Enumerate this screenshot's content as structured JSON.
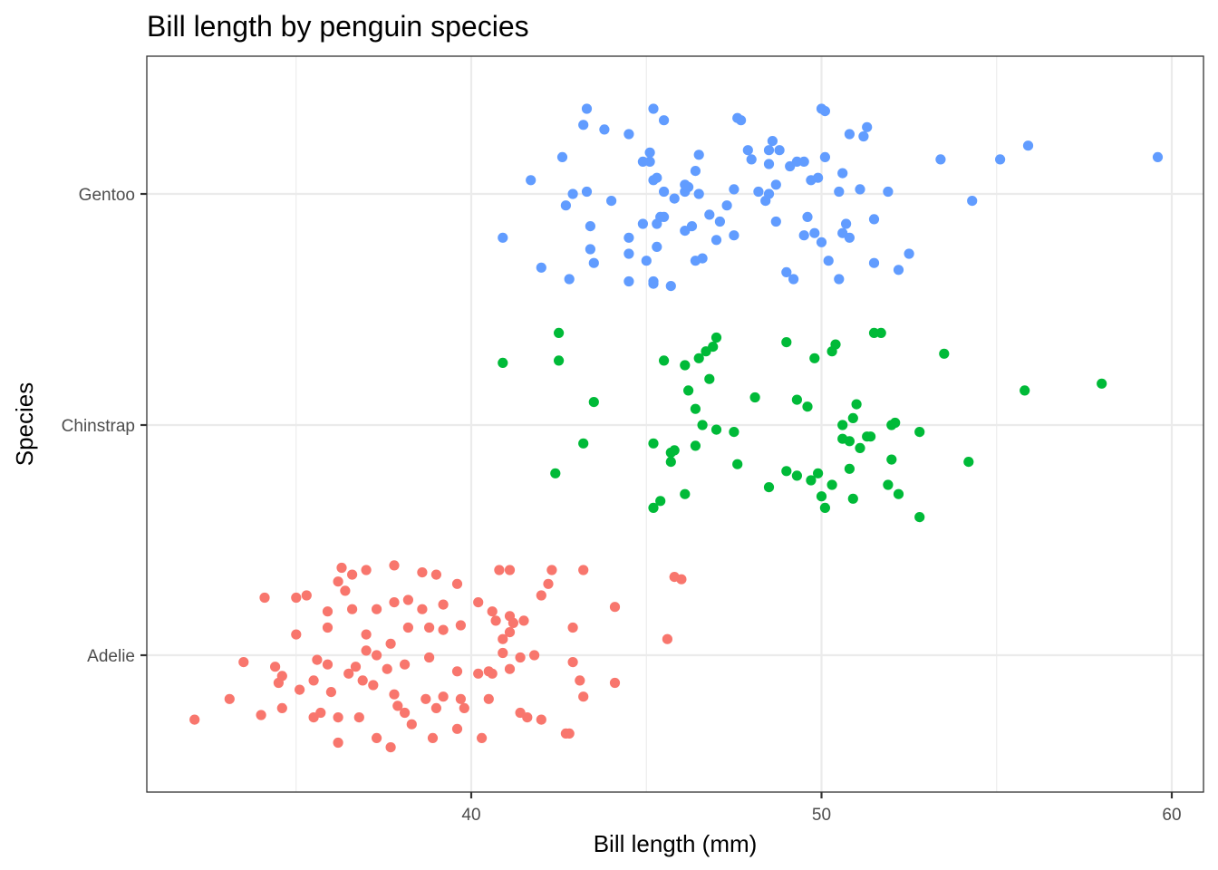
{
  "chart_data": {
    "type": "scatter",
    "title": "Bill length by penguin species",
    "xlabel": "Bill length (mm)",
    "ylabel": "Species",
    "xlim": [
      31.5,
      60.5
    ],
    "x_ticks": [
      40,
      50,
      60
    ],
    "categories": [
      "Adelie",
      "Chinstrap",
      "Gentoo"
    ],
    "grid": true,
    "legend": "none",
    "series": [
      {
        "category": "Adelie",
        "color": "#F8766D",
        "points": [
          [
            32.1,
            -0.28
          ],
          [
            33.1,
            -0.19
          ],
          [
            33.5,
            -0.03
          ],
          [
            34.0,
            -0.26
          ],
          [
            34.1,
            0.25
          ],
          [
            34.4,
            -0.05
          ],
          [
            34.5,
            -0.12
          ],
          [
            34.6,
            -0.09
          ],
          [
            34.6,
            -0.23
          ],
          [
            35.0,
            0.25
          ],
          [
            35.0,
            0.09
          ],
          [
            35.1,
            -0.15
          ],
          [
            35.3,
            0.26
          ],
          [
            35.5,
            -0.11
          ],
          [
            35.5,
            -0.27
          ],
          [
            35.6,
            -0.02
          ],
          [
            35.7,
            -0.25
          ],
          [
            35.9,
            0.19
          ],
          [
            35.9,
            -0.04
          ],
          [
            35.9,
            0.12
          ],
          [
            36.0,
            -0.16
          ],
          [
            36.2,
            0.32
          ],
          [
            36.2,
            -0.27
          ],
          [
            36.2,
            -0.38
          ],
          [
            36.3,
            0.38
          ],
          [
            36.4,
            0.28
          ],
          [
            36.5,
            -0.08
          ],
          [
            36.6,
            0.35
          ],
          [
            36.6,
            0.2
          ],
          [
            36.7,
            -0.05
          ],
          [
            36.8,
            -0.27
          ],
          [
            36.9,
            -0.11
          ],
          [
            37.0,
            0.09
          ],
          [
            37.0,
            0.02
          ],
          [
            37.0,
            0.37
          ],
          [
            37.2,
            -0.13
          ],
          [
            37.3,
            0.2
          ],
          [
            37.3,
            0.0
          ],
          [
            37.3,
            -0.36
          ],
          [
            37.6,
            -0.06
          ],
          [
            37.7,
            0.05
          ],
          [
            37.7,
            -0.4
          ],
          [
            37.8,
            -0.17
          ],
          [
            37.8,
            0.23
          ],
          [
            37.8,
            0.39
          ],
          [
            37.9,
            -0.22
          ],
          [
            38.1,
            -0.25
          ],
          [
            38.1,
            -0.04
          ],
          [
            38.2,
            0.12
          ],
          [
            38.2,
            0.24
          ],
          [
            38.3,
            -0.3
          ],
          [
            38.6,
            0.2
          ],
          [
            38.6,
            0.36
          ],
          [
            38.7,
            -0.19
          ],
          [
            38.8,
            0.12
          ],
          [
            38.8,
            -0.01
          ],
          [
            38.9,
            -0.36
          ],
          [
            39.0,
            0.35
          ],
          [
            39.0,
            -0.23
          ],
          [
            39.2,
            0.22
          ],
          [
            39.2,
            0.11
          ],
          [
            39.2,
            -0.18
          ],
          [
            39.6,
            -0.07
          ],
          [
            39.6,
            -0.32
          ],
          [
            39.6,
            0.31
          ],
          [
            39.7,
            0.13
          ],
          [
            39.7,
            -0.19
          ],
          [
            39.8,
            -0.23
          ],
          [
            40.2,
            0.23
          ],
          [
            40.2,
            -0.08
          ],
          [
            40.3,
            -0.36
          ],
          [
            40.5,
            -0.07
          ],
          [
            40.5,
            -0.19
          ],
          [
            40.6,
            -0.08
          ],
          [
            40.6,
            0.19
          ],
          [
            40.7,
            0.15
          ],
          [
            40.8,
            0.37
          ],
          [
            40.9,
            0.01
          ],
          [
            40.9,
            0.07
          ],
          [
            41.1,
            0.17
          ],
          [
            41.1,
            0.37
          ],
          [
            41.1,
            -0.06
          ],
          [
            41.1,
            0.1
          ],
          [
            41.2,
            0.14
          ],
          [
            41.4,
            -0.25
          ],
          [
            41.4,
            -0.01
          ],
          [
            41.5,
            0.15
          ],
          [
            41.6,
            -0.27
          ],
          [
            41.8,
            0.0
          ],
          [
            42.0,
            -0.28
          ],
          [
            42.0,
            0.26
          ],
          [
            42.2,
            0.31
          ],
          [
            42.3,
            0.37
          ],
          [
            42.7,
            -0.34
          ],
          [
            42.8,
            -0.34
          ],
          [
            42.9,
            -0.03
          ],
          [
            42.9,
            0.12
          ],
          [
            43.1,
            -0.11
          ],
          [
            43.2,
            -0.18
          ],
          [
            43.2,
            0.37
          ],
          [
            44.1,
            0.21
          ],
          [
            44.1,
            -0.12
          ],
          [
            45.6,
            0.07
          ],
          [
            45.8,
            0.34
          ],
          [
            46.0,
            0.33
          ]
        ]
      },
      {
        "category": "Chinstrap",
        "color": "#00BA38",
        "points": [
          [
            40.9,
            0.27
          ],
          [
            42.4,
            -0.21
          ],
          [
            42.5,
            0.4
          ],
          [
            42.5,
            0.28
          ],
          [
            43.2,
            -0.08
          ],
          [
            43.5,
            0.1
          ],
          [
            45.2,
            -0.36
          ],
          [
            45.2,
            -0.08
          ],
          [
            45.4,
            -0.33
          ],
          [
            45.5,
            0.28
          ],
          [
            45.7,
            -0.16
          ],
          [
            45.7,
            -0.12
          ],
          [
            45.8,
            -0.11
          ],
          [
            46.1,
            -0.3
          ],
          [
            46.1,
            0.26
          ],
          [
            46.2,
            0.15
          ],
          [
            46.4,
            -0.09
          ],
          [
            46.4,
            0.07
          ],
          [
            46.5,
            0.29
          ],
          [
            46.6,
            0.0
          ],
          [
            46.7,
            0.32
          ],
          [
            46.8,
            0.2
          ],
          [
            46.9,
            0.34
          ],
          [
            47.0,
            0.38
          ],
          [
            47.0,
            -0.02
          ],
          [
            47.5,
            -0.03
          ],
          [
            47.6,
            -0.17
          ],
          [
            48.1,
            0.12
          ],
          [
            48.5,
            -0.27
          ],
          [
            49.0,
            -0.2
          ],
          [
            49.0,
            0.36
          ],
          [
            49.3,
            0.11
          ],
          [
            49.3,
            -0.22
          ],
          [
            49.6,
            0.08
          ],
          [
            49.7,
            -0.24
          ],
          [
            49.8,
            0.29
          ],
          [
            49.9,
            -0.21
          ],
          [
            50.0,
            -0.31
          ],
          [
            50.1,
            -0.36
          ],
          [
            50.3,
            -0.26
          ],
          [
            50.3,
            0.32
          ],
          [
            50.4,
            0.35
          ],
          [
            50.6,
            -0.06
          ],
          [
            50.6,
            0.0
          ],
          [
            50.8,
            -0.07
          ],
          [
            50.8,
            -0.19
          ],
          [
            50.9,
            0.03
          ],
          [
            50.9,
            -0.32
          ],
          [
            51.0,
            0.09
          ],
          [
            51.1,
            -0.1
          ],
          [
            51.3,
            -0.05
          ],
          [
            51.4,
            -0.05
          ],
          [
            51.5,
            0.4
          ],
          [
            51.7,
            0.4
          ],
          [
            51.9,
            -0.26
          ],
          [
            52.0,
            0.0
          ],
          [
            52.0,
            -0.15
          ],
          [
            52.1,
            0.01
          ],
          [
            52.2,
            -0.3
          ],
          [
            52.8,
            -0.03
          ],
          [
            52.8,
            -0.4
          ],
          [
            53.5,
            0.31
          ],
          [
            54.2,
            -0.16
          ],
          [
            55.8,
            0.15
          ],
          [
            58.0,
            0.18
          ]
        ]
      },
      {
        "category": "Gentoo",
        "color": "#619CFF",
        "points": [
          [
            40.9,
            -0.19
          ],
          [
            41.7,
            0.06
          ],
          [
            42.0,
            -0.32
          ],
          [
            42.6,
            0.16
          ],
          [
            42.7,
            -0.05
          ],
          [
            42.8,
            -0.37
          ],
          [
            42.9,
            0.0
          ],
          [
            43.2,
            0.3
          ],
          [
            43.3,
            0.37
          ],
          [
            43.3,
            0.01
          ],
          [
            43.4,
            -0.14
          ],
          [
            43.4,
            -0.24
          ],
          [
            43.5,
            -0.3
          ],
          [
            43.8,
            0.28
          ],
          [
            44.0,
            -0.03
          ],
          [
            44.5,
            -0.19
          ],
          [
            44.5,
            -0.26
          ],
          [
            44.5,
            -0.38
          ],
          [
            44.5,
            0.26
          ],
          [
            44.9,
            -0.13
          ],
          [
            44.9,
            0.14
          ],
          [
            45.0,
            -0.29
          ],
          [
            45.1,
            0.14
          ],
          [
            45.1,
            0.18
          ],
          [
            45.2,
            0.37
          ],
          [
            45.2,
            -0.38
          ],
          [
            45.2,
            -0.39
          ],
          [
            45.2,
            0.06
          ],
          [
            45.3,
            -0.13
          ],
          [
            45.3,
            -0.23
          ],
          [
            45.3,
            0.07
          ],
          [
            45.4,
            -0.1
          ],
          [
            45.5,
            -0.1
          ],
          [
            45.5,
            0.32
          ],
          [
            45.5,
            0.01
          ],
          [
            45.7,
            -0.4
          ],
          [
            45.8,
            -0.02
          ],
          [
            46.1,
            0.01
          ],
          [
            46.1,
            0.04
          ],
          [
            46.1,
            -0.16
          ],
          [
            46.2,
            0.03
          ],
          [
            46.3,
            -0.14
          ],
          [
            46.4,
            0.1
          ],
          [
            46.4,
            -0.29
          ],
          [
            46.5,
            0.0
          ],
          [
            46.5,
            0.17
          ],
          [
            46.6,
            -0.28
          ],
          [
            46.8,
            -0.09
          ],
          [
            47.0,
            -0.2
          ],
          [
            47.1,
            -0.12
          ],
          [
            47.3,
            -0.05
          ],
          [
            47.5,
            0.02
          ],
          [
            47.6,
            0.33
          ],
          [
            47.5,
            -0.18
          ],
          [
            47.7,
            0.32
          ],
          [
            47.9,
            0.19
          ],
          [
            48.0,
            0.15
          ],
          [
            48.2,
            0.01
          ],
          [
            48.4,
            -0.03
          ],
          [
            48.5,
            0.0
          ],
          [
            48.5,
            0.13
          ],
          [
            48.5,
            0.19
          ],
          [
            48.6,
            0.23
          ],
          [
            48.7,
            0.04
          ],
          [
            48.7,
            -0.12
          ],
          [
            48.8,
            0.19
          ],
          [
            49.0,
            -0.34
          ],
          [
            49.1,
            0.12
          ],
          [
            49.2,
            -0.37
          ],
          [
            49.3,
            0.14
          ],
          [
            49.5,
            0.14
          ],
          [
            49.5,
            -0.18
          ],
          [
            49.6,
            -0.1
          ],
          [
            49.7,
            0.06
          ],
          [
            49.8,
            -0.17
          ],
          [
            49.9,
            0.07
          ],
          [
            50.0,
            -0.21
          ],
          [
            50.0,
            0.37
          ],
          [
            50.1,
            0.16
          ],
          [
            50.1,
            0.36
          ],
          [
            50.2,
            -0.29
          ],
          [
            50.5,
            0.01
          ],
          [
            50.5,
            -0.37
          ],
          [
            50.6,
            -0.17
          ],
          [
            50.6,
            0.09
          ],
          [
            50.7,
            -0.13
          ],
          [
            50.8,
            -0.19
          ],
          [
            50.8,
            0.26
          ],
          [
            51.1,
            0.02
          ],
          [
            51.2,
            0.25
          ],
          [
            51.3,
            0.29
          ],
          [
            51.5,
            -0.3
          ],
          [
            51.5,
            -0.11
          ],
          [
            51.9,
            0.01
          ],
          [
            52.2,
            -0.33
          ],
          [
            52.5,
            -0.26
          ],
          [
            53.4,
            0.15
          ],
          [
            54.3,
            -0.03
          ],
          [
            55.1,
            0.15
          ],
          [
            55.9,
            0.21
          ],
          [
            59.6,
            0.16
          ]
        ]
      }
    ]
  }
}
